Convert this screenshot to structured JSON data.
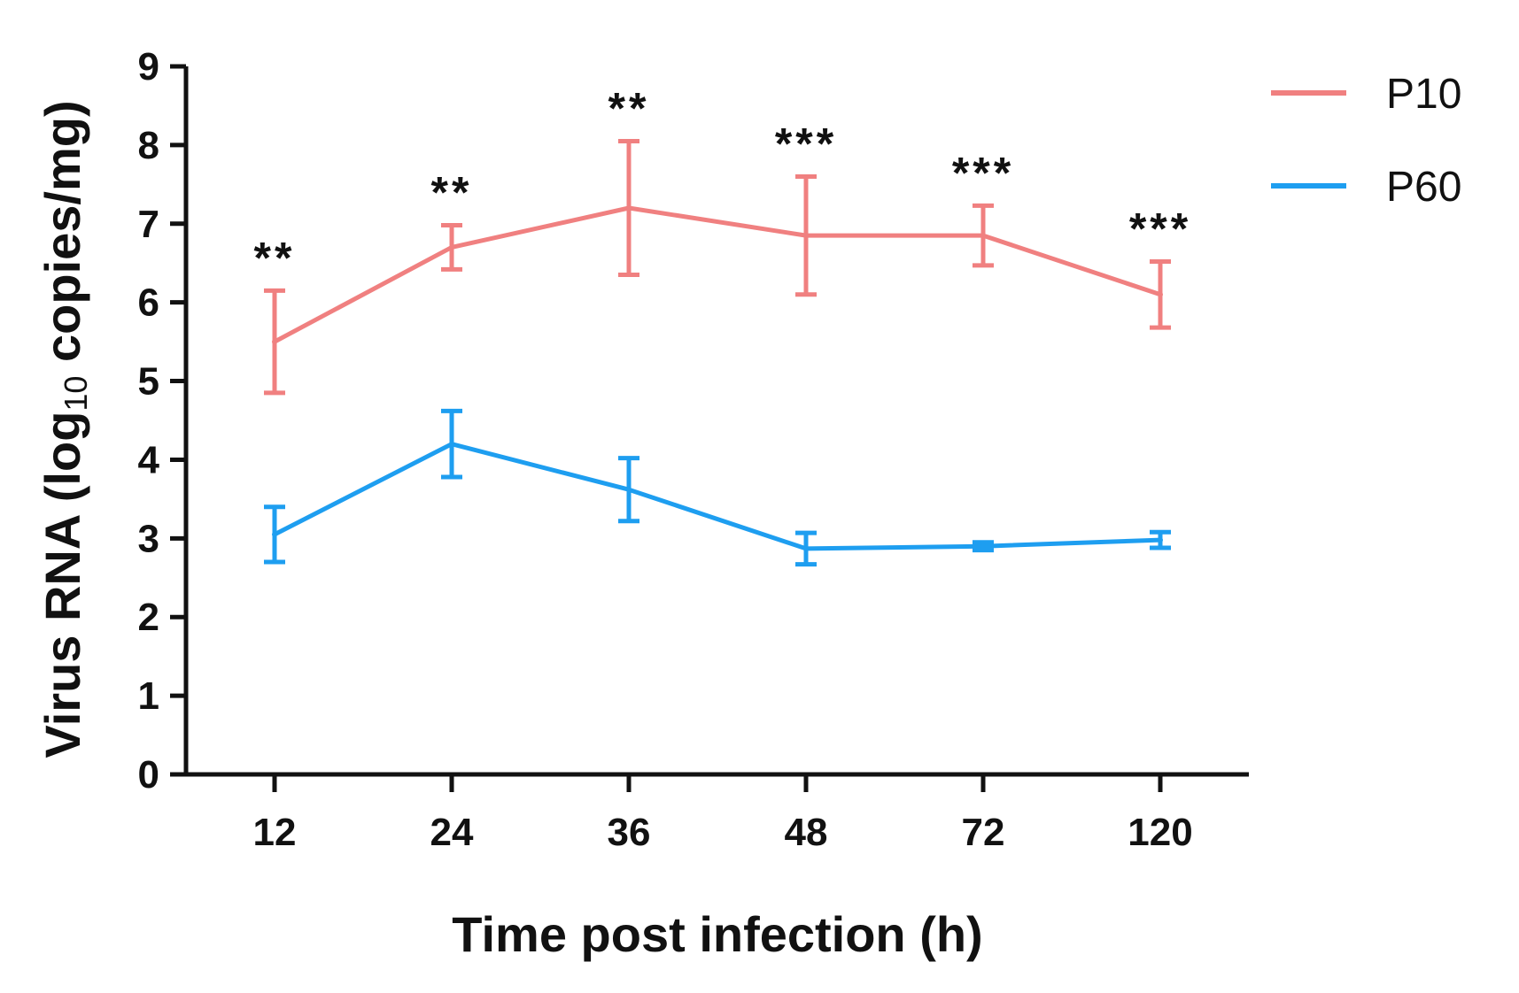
{
  "chart_data": {
    "type": "line",
    "xlabel": "Time post infection (h)",
    "ylabel_main": "Virus RNA (log",
    "ylabel_sub": "10",
    "ylabel_rest": " copies/mg)",
    "ylim": [
      0,
      9
    ],
    "yticks": [
      "0",
      "1",
      "2",
      "3",
      "4",
      "5",
      "6",
      "7",
      "8",
      "9"
    ],
    "categories": [
      "12",
      "24",
      "36",
      "48",
      "72",
      "120"
    ],
    "series": [
      {
        "name": "P10",
        "color": "#f08080",
        "values": [
          5.5,
          6.7,
          7.2,
          6.85,
          6.85,
          6.1
        ],
        "err": [
          0.65,
          0.28,
          0.85,
          0.75,
          0.38,
          0.42
        ]
      },
      {
        "name": "P60",
        "color": "#1e9ef0",
        "values": [
          3.05,
          4.2,
          3.62,
          2.87,
          2.9,
          2.98
        ],
        "err": [
          0.35,
          0.42,
          0.4,
          0.2,
          0.05,
          0.1
        ]
      }
    ],
    "significance": [
      "**",
      "**",
      "**",
      "***",
      "***",
      "***"
    ],
    "legend_position": "top-right"
  }
}
